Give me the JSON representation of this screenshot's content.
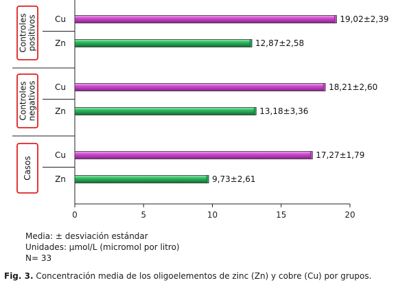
{
  "chart_data": {
    "type": "bar",
    "orientation": "horizontal",
    "groups": [
      {
        "name": "Controles positivos",
        "bars": [
          {
            "label": "Cu",
            "value": 19.02,
            "text": "19,02±2,39"
          },
          {
            "label": "Zn",
            "value": 12.87,
            "text": "12,87±2,58"
          }
        ]
      },
      {
        "name": "Controles negativos",
        "bars": [
          {
            "label": "Cu",
            "value": 18.21,
            "text": "18,21±2,60"
          },
          {
            "label": "Zn",
            "value": 13.18,
            "text": "13,18±3,36"
          }
        ]
      },
      {
        "name": "Casos",
        "bars": [
          {
            "label": "Cu",
            "value": 17.27,
            "text": "17,27±1,79"
          },
          {
            "label": "Zn",
            "value": 9.73,
            "text": "9,73±2,61"
          }
        ]
      }
    ],
    "xlim": [
      0,
      20
    ],
    "xticks": [
      "0",
      "5",
      "10",
      "15",
      "20"
    ],
    "colors": {
      "Cu": "#cc44cc",
      "Zn": "#22aa55"
    },
    "grid": false,
    "legend": "none"
  },
  "notes": [
    "Media: ± desviación estándar",
    "Unidades: µmol/L (micromol por litro)",
    "N= 33"
  ],
  "caption": {
    "label": "Fig. 3.",
    "text": "Concentración media de los oligoelementos de zinc (Zn) y cobre (Cu) por grupos."
  }
}
